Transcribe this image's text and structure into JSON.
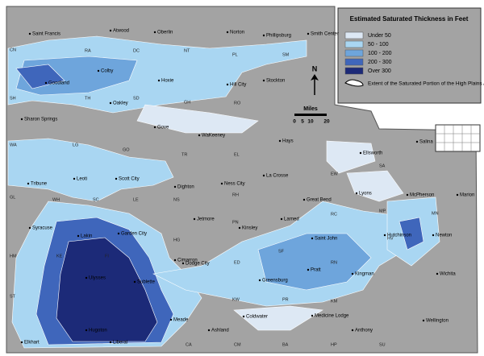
{
  "map": {
    "legend": {
      "title": "Estimated Saturated Thickness in Feet",
      "classes": [
        {
          "label": "Under 50",
          "color": "#dde8f4"
        },
        {
          "label": "50 - 100",
          "color": "#a9d6f2"
        },
        {
          "label": "100 - 200",
          "color": "#6ea5dc"
        },
        {
          "label": "200 - 300",
          "color": "#3f66bb"
        },
        {
          "label": "Over 300",
          "color": "#1c2a78"
        }
      ],
      "extent_label": "Extent of the Saturated Portion of the High Plains Aquifer"
    },
    "north_label": "N",
    "scale": {
      "title": "Miles",
      "labels": [
        "0",
        "5",
        "10",
        "20"
      ]
    },
    "towns": [
      "Saint Francis",
      "Atwood",
      "Oberlin",
      "Norton",
      "Phillipsburg",
      "Smith Center",
      "Colby",
      "Goodland",
      "Hoxie",
      "Hill City",
      "Stockton",
      "Oakley",
      "Gove",
      "WaKeeney",
      "Hays",
      "Sharon Springs",
      "Ellsworth",
      "Salina",
      "Tribune",
      "Leoti",
      "Scott City",
      "Dighton",
      "Ness City",
      "La Crosse",
      "Great Bend",
      "Lyons",
      "McPherson",
      "Marion",
      "Larned",
      "Jetmore",
      "Syracuse",
      "Lakin",
      "Garden City",
      "Kinsley",
      "Saint John",
      "Hutchinson",
      "Newton",
      "Cimarron",
      "Dodge City",
      "Pratt",
      "Greensburg",
      "Kingman",
      "Wichita",
      "Ulysses",
      "Sublette",
      "Coldwater",
      "Medicine Lodge",
      "Anthony",
      "Wellington",
      "Meade",
      "Ashland",
      "Hugoton",
      "Elkhart",
      "Liberal"
    ],
    "counties": [
      "CN",
      "RA",
      "DC",
      "NT",
      "PL",
      "SM",
      "SH",
      "TH",
      "SD",
      "GH",
      "RO",
      "WA",
      "LG",
      "GO",
      "TR",
      "EL",
      "GL",
      "WH",
      "SC",
      "LE",
      "NS",
      "RH",
      "EW",
      "SA",
      "MP",
      "MN",
      "RC",
      "HM",
      "KE",
      "FI",
      "HG",
      "ED",
      "PN",
      "SF",
      "RN",
      "HV",
      "ST",
      "KW",
      "PR",
      "KM",
      "CA",
      "CM",
      "BA",
      "HP",
      "SU"
    ]
  }
}
